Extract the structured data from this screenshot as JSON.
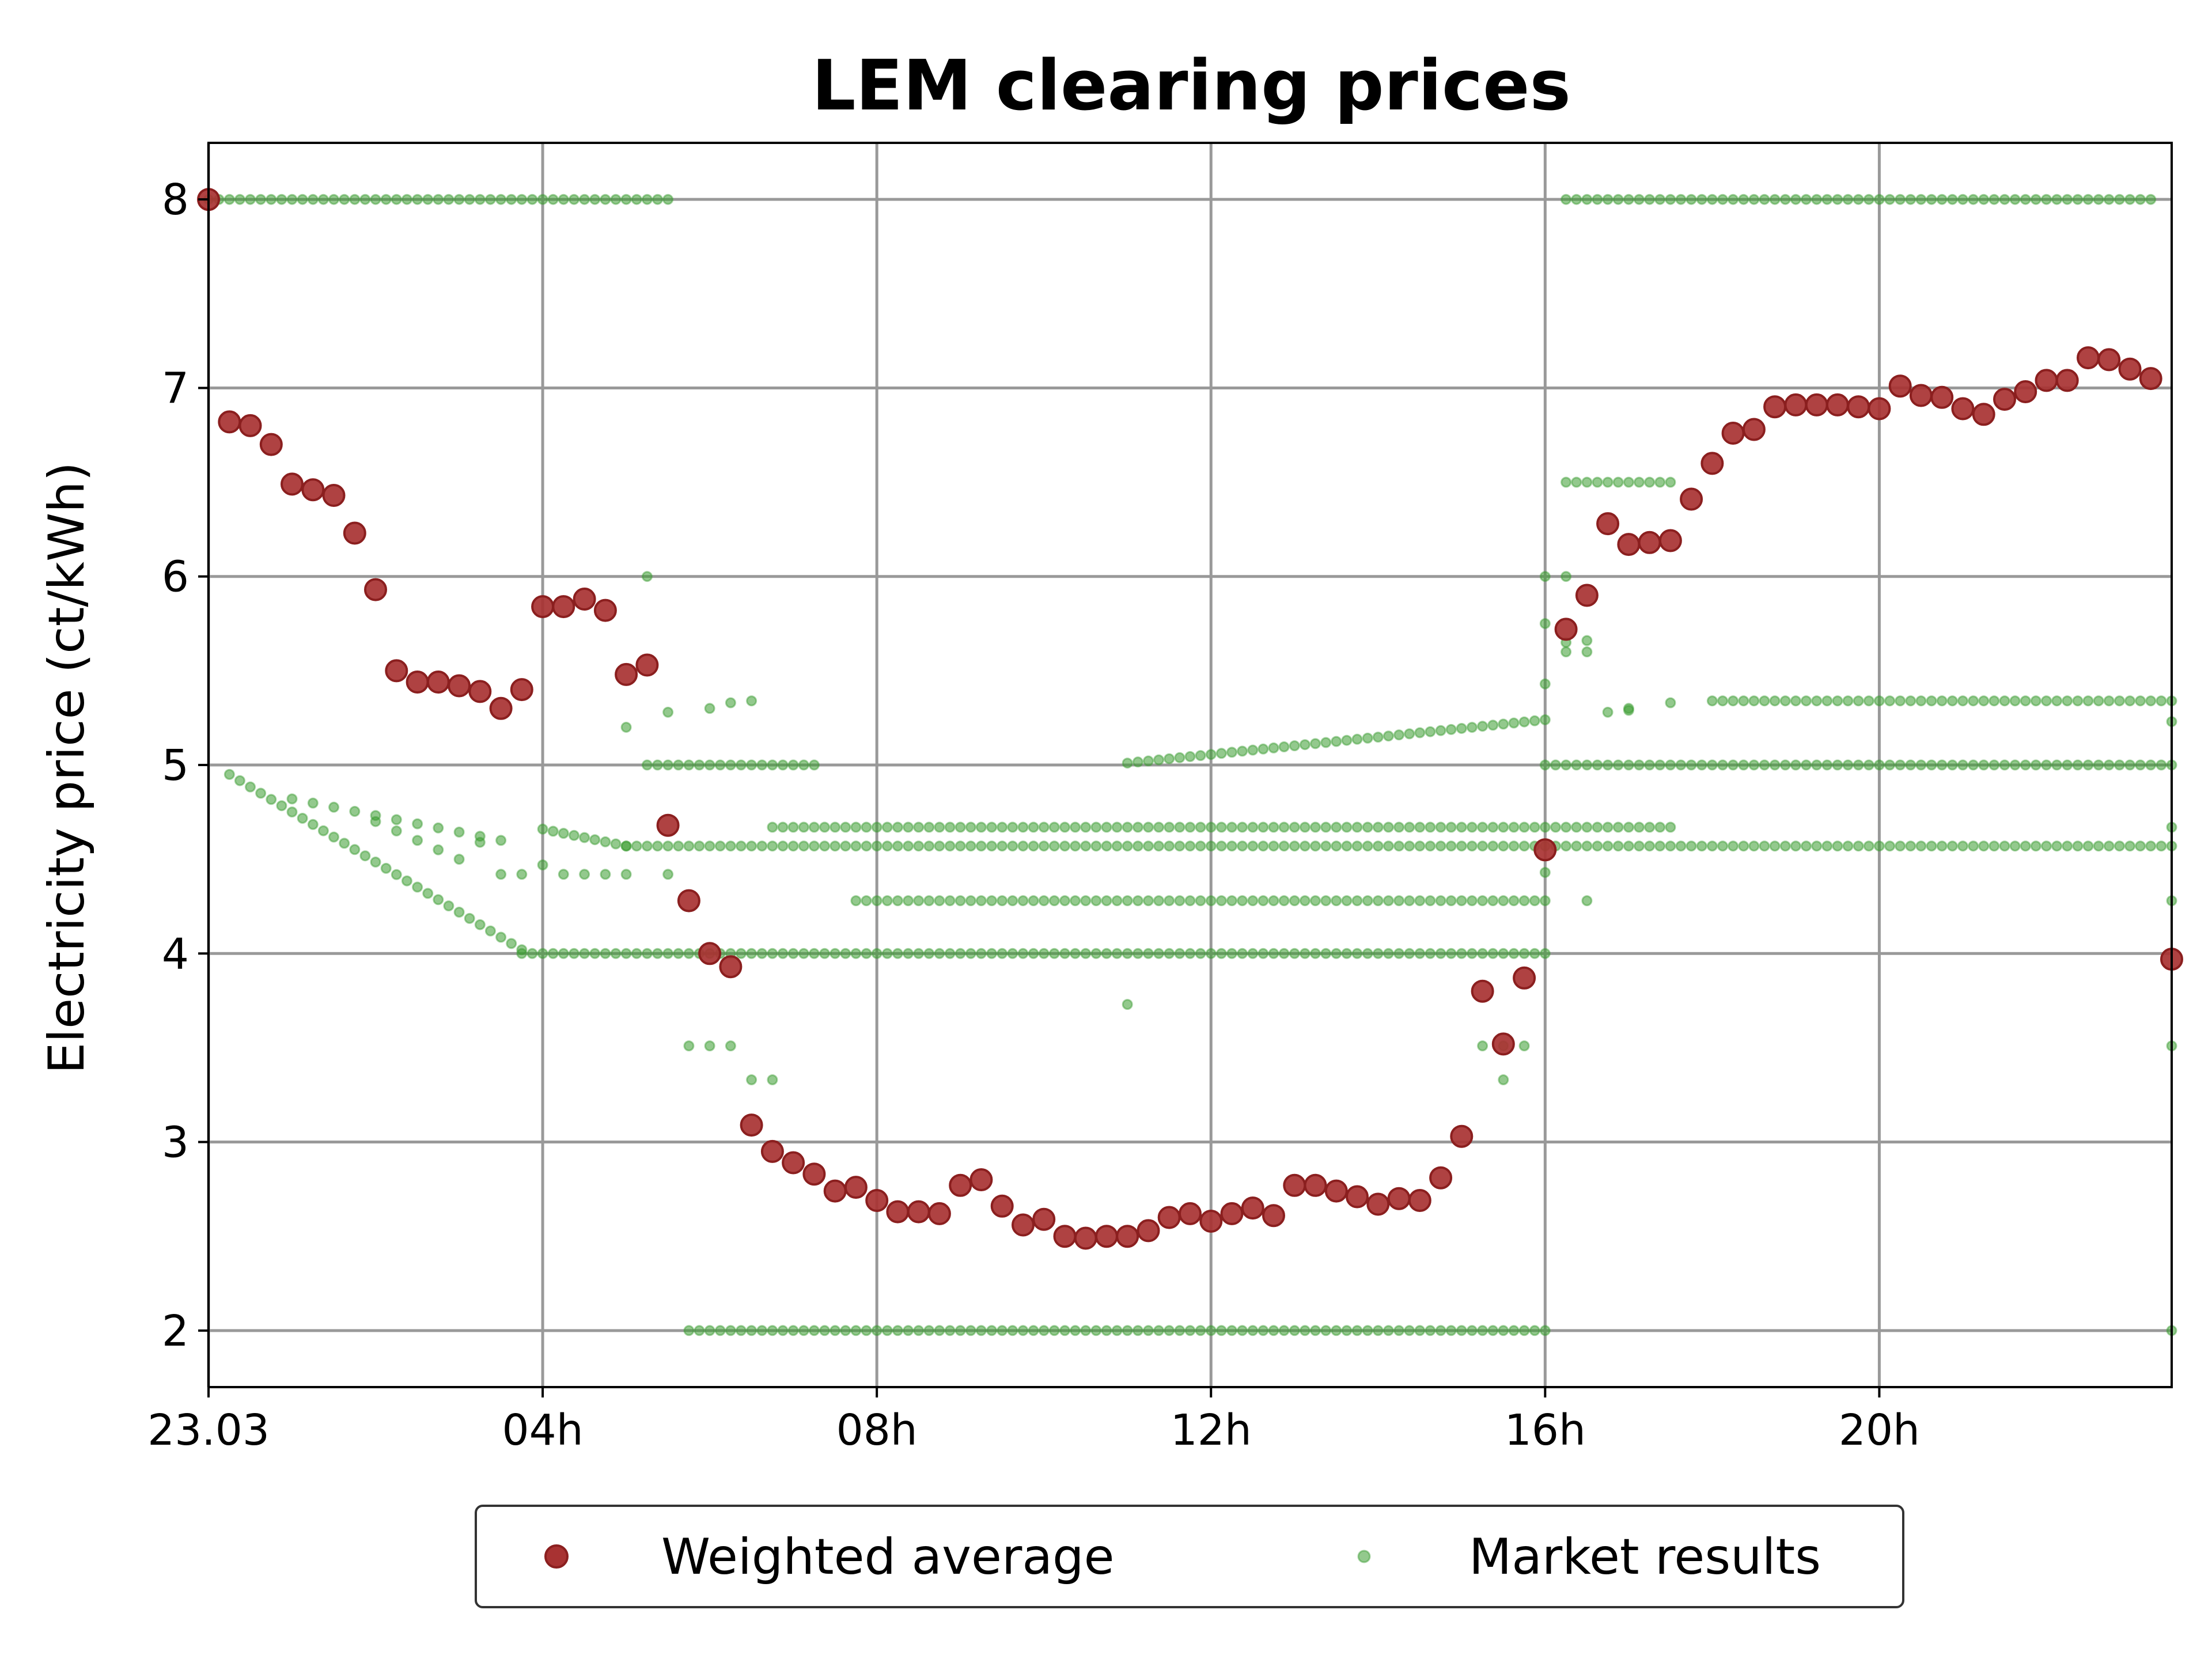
{
  "chart_data": {
    "type": "scatter",
    "title": "LEM clearing prices",
    "xlabel": "",
    "ylabel": "Electricity price (ct/kWh)",
    "xlim": [
      0,
      23.5
    ],
    "ylim": [
      1.7,
      8.3
    ],
    "x_unit": "hours since 23.03 00:00",
    "x_ticks": [
      {
        "value": 0,
        "label": "23.03"
      },
      {
        "value": 4,
        "label": "04h"
      },
      {
        "value": 8,
        "label": "08h"
      },
      {
        "value": 12,
        "label": "12h"
      },
      {
        "value": 16,
        "label": "16h"
      },
      {
        "value": 20,
        "label": "20h"
      }
    ],
    "y_ticks": [
      {
        "value": 2,
        "label": "2"
      },
      {
        "value": 3,
        "label": "3"
      },
      {
        "value": 4,
        "label": "4"
      },
      {
        "value": 5,
        "label": "5"
      },
      {
        "value": 6,
        "label": "6"
      },
      {
        "value": 7,
        "label": "7"
      },
      {
        "value": 8,
        "label": "8"
      }
    ],
    "grid": true,
    "legend": {
      "placement": "bottom-center",
      "entries": [
        "Weighted average",
        "Market results"
      ]
    },
    "colors": {
      "weighted": "#a83232",
      "weighted_edge": "#8b1f1f",
      "market": "#3a9c30",
      "grid": "#999999"
    },
    "series": [
      {
        "name": "Weighted average",
        "x": [
          0.0,
          0.25,
          0.5,
          0.75,
          1.0,
          1.25,
          1.5,
          1.75,
          2.0,
          2.25,
          2.5,
          2.75,
          3.0,
          3.25,
          3.5,
          3.75,
          4.0,
          4.25,
          4.5,
          4.75,
          5.0,
          5.25,
          5.5,
          5.75,
          6.0,
          6.25,
          6.5,
          6.75,
          7.0,
          7.25,
          7.5,
          7.75,
          8.0,
          8.25,
          8.5,
          8.75,
          9.0,
          9.25,
          9.5,
          9.75,
          10.0,
          10.25,
          10.5,
          10.75,
          11.0,
          11.25,
          11.5,
          11.75,
          12.0,
          12.25,
          12.5,
          12.75,
          13.0,
          13.25,
          13.5,
          13.75,
          14.0,
          14.25,
          14.5,
          14.75,
          15.0,
          15.25,
          15.5,
          15.75,
          16.0,
          16.25,
          16.5,
          16.75,
          17.0,
          17.25,
          17.5,
          17.75,
          18.0,
          18.25,
          18.5,
          18.75,
          19.0,
          19.25,
          19.5,
          19.75,
          20.0,
          20.25,
          20.5,
          20.75,
          21.0,
          21.25,
          21.5,
          21.75,
          22.0,
          22.25,
          22.5,
          22.75,
          23.0,
          23.25,
          23.5
        ],
        "y": [
          8.0,
          6.82,
          6.8,
          6.7,
          6.49,
          6.46,
          6.43,
          6.23,
          5.93,
          5.5,
          5.44,
          5.44,
          5.42,
          5.39,
          5.3,
          5.4,
          5.84,
          5.84,
          5.88,
          5.82,
          5.48,
          5.53,
          4.68,
          4.28,
          4.0,
          3.93,
          3.09,
          2.95,
          2.89,
          2.83,
          2.74,
          2.76,
          2.69,
          2.63,
          2.63,
          2.62,
          2.77,
          2.8,
          2.66,
          2.56,
          2.59,
          2.5,
          2.49,
          2.5,
          2.5,
          2.53,
          2.6,
          2.62,
          2.58,
          2.62,
          2.65,
          2.61,
          2.77,
          2.77,
          2.74,
          2.71,
          2.67,
          2.7,
          2.69,
          2.81,
          3.03,
          3.8,
          3.52,
          3.87,
          4.55,
          5.72,
          5.9,
          6.28,
          6.17,
          6.18,
          6.19,
          6.41,
          6.6,
          6.76,
          6.78,
          6.9,
          6.91,
          6.91,
          6.91,
          6.9,
          6.89,
          7.01,
          6.96,
          6.95,
          6.89,
          6.86,
          6.94,
          6.98,
          7.04,
          7.04,
          7.16,
          7.15,
          7.1,
          7.05,
          3.97
        ]
      },
      {
        "name": "Market results",
        "levels": [
          {
            "y": 8.0,
            "x_start": 0.0,
            "x_end": 5.5,
            "step": 0.125
          },
          {
            "y": 8.0,
            "x_start": 16.25,
            "x_end": 23.25,
            "step": 0.125
          },
          {
            "y": 2.0,
            "x_start": 5.75,
            "x_end": 16.0,
            "step": 0.125
          },
          {
            "y": 2.0,
            "x_start": 23.5,
            "x_end": 23.5,
            "step": 0.125
          },
          {
            "y": 4.0,
            "x_start": 3.75,
            "x_end": 16.0,
            "step": 0.125
          },
          {
            "y": 4.57,
            "x_start": 5.0,
            "x_end": 23.5,
            "step": 0.125
          },
          {
            "y": 4.67,
            "x_start": 6.75,
            "x_end": 17.5,
            "step": 0.125
          },
          {
            "y": 4.28,
            "x_start": 7.75,
            "x_end": 16.0,
            "step": 0.125
          },
          {
            "y": 5.0,
            "x_start": 5.25,
            "x_end": 7.25,
            "step": 0.125
          },
          {
            "y": 5.0,
            "x_start": 16.0,
            "x_end": 23.5,
            "step": 0.125
          },
          {
            "y": 5.34,
            "x_start": 18.0,
            "x_end": 23.5,
            "step": 0.125
          },
          {
            "y": 6.5,
            "x_start": 16.25,
            "x_end": 17.5,
            "step": 0.125
          }
        ],
        "slopes": [
          {
            "x_start": 0.25,
            "y_start": 4.95,
            "x_end": 3.75,
            "y_end": 4.02,
            "step": 0.125
          },
          {
            "x_start": 4.0,
            "y_start": 4.66,
            "x_end": 5.0,
            "y_end": 4.57,
            "step": 0.125
          },
          {
            "x_start": 11.0,
            "y_start": 5.01,
            "x_end": 16.0,
            "y_end": 5.24,
            "step": 0.125
          },
          {
            "x_start": 1.0,
            "y_start": 4.82,
            "x_end": 3.5,
            "y_end": 4.6,
            "step": 0.25
          }
        ],
        "points": [
          {
            "x": 5.25,
            "y": 6.0
          },
          {
            "x": 5.0,
            "y": 5.2
          },
          {
            "x": 5.5,
            "y": 5.28
          },
          {
            "x": 5.5,
            "y": 4.42
          },
          {
            "x": 3.5,
            "y": 4.42
          },
          {
            "x": 3.75,
            "y": 4.42
          },
          {
            "x": 4.0,
            "y": 4.47
          },
          {
            "x": 4.25,
            "y": 4.42
          },
          {
            "x": 4.5,
            "y": 4.42
          },
          {
            "x": 4.75,
            "y": 4.42
          },
          {
            "x": 5.0,
            "y": 4.42
          },
          {
            "x": 2.0,
            "y": 4.7
          },
          {
            "x": 2.25,
            "y": 4.65
          },
          {
            "x": 2.5,
            "y": 4.6
          },
          {
            "x": 2.75,
            "y": 4.55
          },
          {
            "x": 3.0,
            "y": 4.5
          },
          {
            "x": 3.25,
            "y": 4.59
          },
          {
            "x": 5.75,
            "y": 3.51
          },
          {
            "x": 6.0,
            "y": 3.51
          },
          {
            "x": 6.25,
            "y": 3.51
          },
          {
            "x": 6.5,
            "y": 3.33
          },
          {
            "x": 6.75,
            "y": 3.33
          },
          {
            "x": 6.0,
            "y": 5.3
          },
          {
            "x": 6.25,
            "y": 5.33
          },
          {
            "x": 6.5,
            "y": 5.34
          },
          {
            "x": 11.0,
            "y": 3.73
          },
          {
            "x": 15.25,
            "y": 3.51
          },
          {
            "x": 15.5,
            "y": 3.51
          },
          {
            "x": 15.75,
            "y": 3.51
          },
          {
            "x": 15.5,
            "y": 3.33
          },
          {
            "x": 16.0,
            "y": 4.43
          },
          {
            "x": 16.0,
            "y": 5.43
          },
          {
            "x": 16.0,
            "y": 5.75
          },
          {
            "x": 16.0,
            "y": 6.0
          },
          {
            "x": 16.25,
            "y": 5.6
          },
          {
            "x": 16.5,
            "y": 5.6
          },
          {
            "x": 16.25,
            "y": 6.0
          },
          {
            "x": 16.5,
            "y": 5.66
          },
          {
            "x": 16.25,
            "y": 5.65
          },
          {
            "x": 16.5,
            "y": 4.28
          },
          {
            "x": 16.75,
            "y": 5.28
          },
          {
            "x": 17.0,
            "y": 5.3
          },
          {
            "x": 17.0,
            "y": 5.29
          },
          {
            "x": 17.5,
            "y": 5.33
          },
          {
            "x": 23.5,
            "y": 3.51
          },
          {
            "x": 23.5,
            "y": 4.28
          },
          {
            "x": 23.5,
            "y": 5.23
          },
          {
            "x": 23.5,
            "y": 4.67
          }
        ]
      }
    ]
  }
}
